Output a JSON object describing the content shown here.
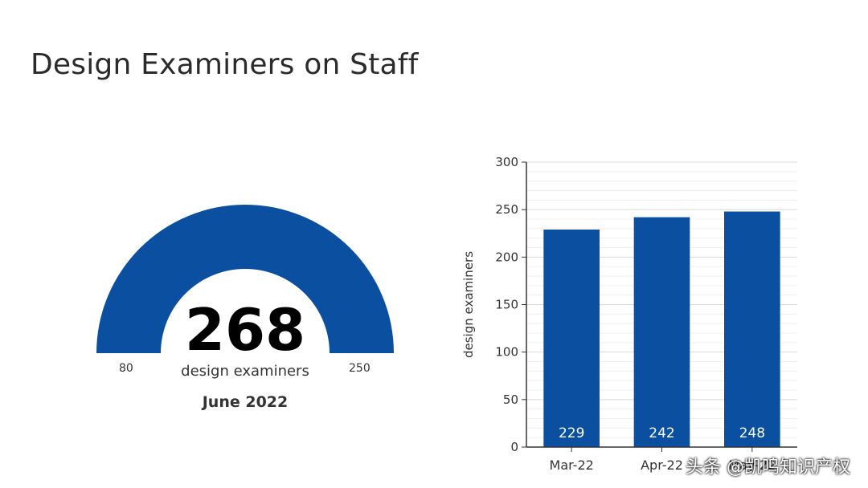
{
  "title": "Design Examiners on Staff",
  "gauge": {
    "value": "268",
    "value_number": 268,
    "unit": "design examiners",
    "min": "80",
    "max": "250",
    "period": "June 2022",
    "color": "#0B4FA0",
    "level": 1.0
  },
  "colors": {
    "bar": "#0B4FA0",
    "grid": "#e3e3e3",
    "axis": "#333333"
  },
  "chart_data": {
    "type": "bar",
    "categories": [
      "Mar-22",
      "Apr-22",
      "May-22"
    ],
    "values": [
      229,
      242,
      248
    ],
    "data_labels": [
      "229",
      "242",
      "248"
    ],
    "title": "",
    "xlabel": "",
    "ylabel": "design examiners",
    "ylim": [
      0,
      300
    ],
    "yticks": [
      0,
      50,
      100,
      150,
      200,
      250,
      300
    ],
    "grid": true,
    "legend": "none"
  },
  "footer": {
    "caption": "头条 @凯鸣知识产权"
  }
}
